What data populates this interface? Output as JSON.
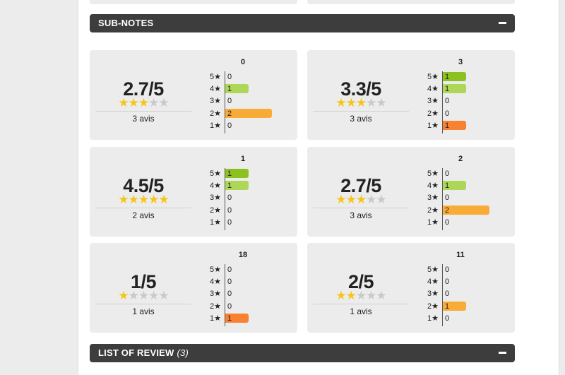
{
  "sub_notes": {
    "title": "SUB-NOTES"
  },
  "review_list": {
    "title": "LIST OF REVIEW",
    "count": "(3)"
  },
  "cards": [
    {
      "name": "0",
      "score": "2.7/5",
      "stars": 3,
      "avis": "3 avis",
      "rows": [
        {
          "label": "5★",
          "value": "0",
          "count": 0
        },
        {
          "label": "4★",
          "value": "1",
          "count": 1
        },
        {
          "label": "3★",
          "value": "0",
          "count": 0
        },
        {
          "label": "2★",
          "value": "2",
          "count": 2
        },
        {
          "label": "1★",
          "value": "0",
          "count": 0
        }
      ]
    },
    {
      "name": "3",
      "score": "3.3/5",
      "stars": 3,
      "avis": "3 avis",
      "rows": [
        {
          "label": "5★",
          "value": "1",
          "count": 1
        },
        {
          "label": "4★",
          "value": "1",
          "count": 1
        },
        {
          "label": "3★",
          "value": "0",
          "count": 0
        },
        {
          "label": "2★",
          "value": "0",
          "count": 0
        },
        {
          "label": "1★",
          "value": "1",
          "count": 1
        }
      ]
    },
    {
      "name": "1",
      "score": "4.5/5",
      "stars": 5,
      "avis": "2 avis",
      "rows": [
        {
          "label": "5★",
          "value": "1",
          "count": 1
        },
        {
          "label": "4★",
          "value": "1",
          "count": 1
        },
        {
          "label": "3★",
          "value": "0",
          "count": 0
        },
        {
          "label": "2★",
          "value": "0",
          "count": 0
        },
        {
          "label": "1★",
          "value": "0",
          "count": 0
        }
      ]
    },
    {
      "name": "2",
      "score": "2.7/5",
      "stars": 3,
      "avis": "3 avis",
      "rows": [
        {
          "label": "5★",
          "value": "0",
          "count": 0
        },
        {
          "label": "4★",
          "value": "1",
          "count": 1
        },
        {
          "label": "3★",
          "value": "0",
          "count": 0
        },
        {
          "label": "2★",
          "value": "2",
          "count": 2
        },
        {
          "label": "1★",
          "value": "0",
          "count": 0
        }
      ]
    },
    {
      "name": "18",
      "score": "1/5",
      "stars": 1,
      "avis": "1 avis",
      "rows": [
        {
          "label": "5★",
          "value": "0",
          "count": 0
        },
        {
          "label": "4★",
          "value": "0",
          "count": 0
        },
        {
          "label": "3★",
          "value": "0",
          "count": 0
        },
        {
          "label": "2★",
          "value": "0",
          "count": 0
        },
        {
          "label": "1★",
          "value": "1",
          "count": 1
        }
      ]
    },
    {
      "name": "11",
      "score": "2/5",
      "stars": 2,
      "avis": "1 avis",
      "rows": [
        {
          "label": "5★",
          "value": "0",
          "count": 0
        },
        {
          "label": "4★",
          "value": "0",
          "count": 0
        },
        {
          "label": "3★",
          "value": "0",
          "count": 0
        },
        {
          "label": "2★",
          "value": "1",
          "count": 1
        },
        {
          "label": "1★",
          "value": "0",
          "count": 0
        }
      ]
    }
  ],
  "colors": {
    "5": "#8cc21f",
    "4": "#aed657",
    "3": "#c8c8c8",
    "2": "#f9ab38",
    "1": "#f98132",
    "star_on": "#f5c518",
    "star_off": "#c9c9c9",
    "header_bg": "#3d3d3d"
  },
  "icons": {
    "collapse": "minus-icon",
    "star": "star-icon"
  }
}
